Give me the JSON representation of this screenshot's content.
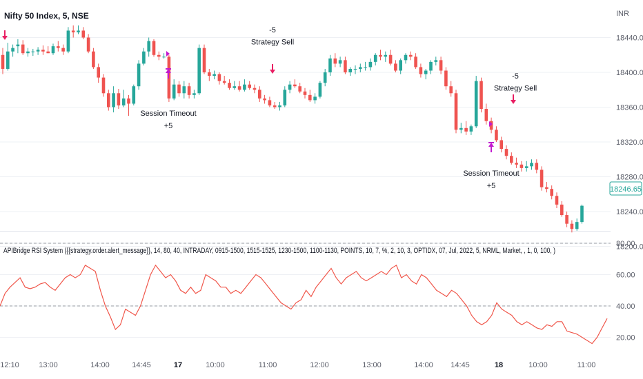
{
  "symbol_title": "Nifty 50 Index, 5, NSE",
  "currency_label": "INR",
  "last_price_label": "18246.65",
  "colors": {
    "up": "#26a69a",
    "down": "#ef5350",
    "rsi_line": "#f0564a",
    "strategy_sell": "#e91e63",
    "session_timeout": "#c21acf"
  },
  "annotations": [
    {
      "text": "-5",
      "x": 395,
      "price": 18446
    },
    {
      "text": "Strategy Sell",
      "x": 395,
      "price": 18432
    },
    {
      "text": "Session Timeout",
      "x": 244,
      "price": 18350
    },
    {
      "text": "+5",
      "x": 244,
      "price": 18336
    },
    {
      "text": "-5",
      "x": 747,
      "price": 18393
    },
    {
      "text": "Strategy Sell",
      "x": 747,
      "price": 18379
    },
    {
      "text": "Session Timeout",
      "x": 712,
      "price": 18281
    },
    {
      "text": "+5",
      "x": 712,
      "price": 18267
    }
  ],
  "rsi_indicator_label": "APIBridge RSI System ({{strategy.order.alert_message}}, 14, 80, 40, INTRADAY, 0915-1500, 1515-1525, 1230-1500, 1100-1130, POINTS, 10, 7, %, 2, 10, 3, OPTIDX, 07, Jul, 2022, 5, NRML, Market, , 1, 0, 100, )",
  "chart_data": [
    {
      "type": "candlestick",
      "title": "Nifty 50 Index, 5, NSE",
      "y_axis_ticks": [
        18200,
        18240,
        18280,
        18320,
        18360,
        18400,
        18440
      ],
      "y_axis_tick_labels": [
        "18200.00",
        "18240.00",
        "18280.00",
        "18320.00",
        "18360.00",
        "18400.00",
        "18440.00"
      ],
      "ylim": [
        18195,
        18470
      ],
      "x_axis_tick_labels": [
        "12:10",
        "13:00",
        "14:00",
        "14:45",
        "17",
        "10:00",
        "11:00",
        "12:00",
        "13:00",
        "14:00",
        "14:45",
        "18",
        "10:00",
        "11:00"
      ],
      "x_axis_bold_labels": [
        "17",
        "18"
      ],
      "last_price": 18246.65,
      "candles": [
        {
          "o": 18420.0,
          "h": 18428.0,
          "l": 18398.0,
          "c": 18404.0
        },
        {
          "o": 18404.0,
          "h": 18434.0,
          "l": 18402.0,
          "c": 18424.0
        },
        {
          "o": 18424.0,
          "h": 18432.0,
          "l": 18418.0,
          "c": 18428.0
        },
        {
          "o": 18430.0,
          "h": 18438.0,
          "l": 18422.0,
          "c": 18432.0
        },
        {
          "o": 18432.0,
          "h": 18437.0,
          "l": 18420.0,
          "c": 18422.0
        },
        {
          "o": 18422.0,
          "h": 18428.0,
          "l": 18418.0,
          "c": 18424.0
        },
        {
          "o": 18424.0,
          "h": 18427.0,
          "l": 18419.0,
          "c": 18424.0
        },
        {
          "o": 18424.0,
          "h": 18429.0,
          "l": 18420.0,
          "c": 18426.0
        },
        {
          "o": 18426.0,
          "h": 18431.0,
          "l": 18420.0,
          "c": 18424.0
        },
        {
          "o": 18424.0,
          "h": 18430.0,
          "l": 18422.0,
          "c": 18422.0
        },
        {
          "o": 18422.0,
          "h": 18433.0,
          "l": 18420.0,
          "c": 18430.0
        },
        {
          "o": 18430.0,
          "h": 18436.0,
          "l": 18424.0,
          "c": 18428.0
        },
        {
          "o": 18428.0,
          "h": 18432.0,
          "l": 18420.0,
          "c": 18424.0
        },
        {
          "o": 18424.0,
          "h": 18452.0,
          "l": 18422.0,
          "c": 18448.0
        },
        {
          "o": 18448.0,
          "h": 18454.0,
          "l": 18440.0,
          "c": 18446.0
        },
        {
          "o": 18446.0,
          "h": 18454.0,
          "l": 18444.0,
          "c": 18448.0
        },
        {
          "o": 18448.0,
          "h": 18452.0,
          "l": 18438.0,
          "c": 18440.0
        },
        {
          "o": 18440.0,
          "h": 18444.0,
          "l": 18422.0,
          "c": 18424.0
        },
        {
          "o": 18424.0,
          "h": 18428.0,
          "l": 18404.0,
          "c": 18406.0
        },
        {
          "o": 18406.0,
          "h": 18410.0,
          "l": 18388.0,
          "c": 18394.0
        },
        {
          "o": 18394.0,
          "h": 18398.0,
          "l": 18372.0,
          "c": 18376.0
        },
        {
          "o": 18376.0,
          "h": 18380.0,
          "l": 18356.0,
          "c": 18360.0
        },
        {
          "o": 18360.0,
          "h": 18384.0,
          "l": 18354.0,
          "c": 18376.0
        },
        {
          "o": 18376.0,
          "h": 18381.0,
          "l": 18358.0,
          "c": 18362.0
        },
        {
          "o": 18362.0,
          "h": 18380.0,
          "l": 18360.0,
          "c": 18370.0
        },
        {
          "o": 18370.0,
          "h": 18374.0,
          "l": 18350.0,
          "c": 18364.0
        },
        {
          "o": 18364.0,
          "h": 18386.0,
          "l": 18362.0,
          "c": 18384.0
        },
        {
          "o": 18384.0,
          "h": 18414.0,
          "l": 18380.0,
          "c": 18410.0
        },
        {
          "o": 18410.0,
          "h": 18428.0,
          "l": 18408.0,
          "c": 18424.0
        },
        {
          "o": 18424.0,
          "h": 18440.0,
          "l": 18418.0,
          "c": 18436.0
        },
        {
          "o": 18436.0,
          "h": 18438.0,
          "l": 18418.0,
          "c": 18420.0
        },
        {
          "o": 18420.0,
          "h": 18424.0,
          "l": 18414.0,
          "c": 18418.0
        },
        {
          "o": 18418.0,
          "h": 18422.0,
          "l": 18416.0,
          "c": 18418.0
        },
        {
          "o": 18418.0,
          "h": 18420.0,
          "l": 18366.0,
          "c": 18370.0
        },
        {
          "o": 18370.0,
          "h": 18392.0,
          "l": 18368.0,
          "c": 18386.0
        },
        {
          "o": 18386.0,
          "h": 18390.0,
          "l": 18372.0,
          "c": 18376.0
        },
        {
          "o": 18376.0,
          "h": 18390.0,
          "l": 18370.0,
          "c": 18384.0
        },
        {
          "o": 18384.0,
          "h": 18388.0,
          "l": 18370.0,
          "c": 18374.0
        },
        {
          "o": 18374.0,
          "h": 18380.0,
          "l": 18370.0,
          "c": 18376.0
        },
        {
          "o": 18376.0,
          "h": 18432.0,
          "l": 18374.0,
          "c": 18428.0
        },
        {
          "o": 18428.0,
          "h": 18432.0,
          "l": 18398.0,
          "c": 18400.0
        },
        {
          "o": 18400.0,
          "h": 18404.0,
          "l": 18390.0,
          "c": 18396.0
        },
        {
          "o": 18396.0,
          "h": 18402.0,
          "l": 18392.0,
          "c": 18398.0
        },
        {
          "o": 18398.0,
          "h": 18400.0,
          "l": 18386.0,
          "c": 18390.0
        },
        {
          "o": 18390.0,
          "h": 18396.0,
          "l": 18386.0,
          "c": 18388.0
        },
        {
          "o": 18388.0,
          "h": 18392.0,
          "l": 18380.0,
          "c": 18382.0
        },
        {
          "o": 18382.0,
          "h": 18390.0,
          "l": 18380.0,
          "c": 18384.0
        },
        {
          "o": 18384.0,
          "h": 18390.0,
          "l": 18378.0,
          "c": 18380.0
        },
        {
          "o": 18380.0,
          "h": 18392.0,
          "l": 18378.0,
          "c": 18386.0
        },
        {
          "o": 18386.0,
          "h": 18390.0,
          "l": 18380.0,
          "c": 18382.0
        },
        {
          "o": 18382.0,
          "h": 18386.0,
          "l": 18376.0,
          "c": 18380.0
        },
        {
          "o": 18380.0,
          "h": 18384.0,
          "l": 18366.0,
          "c": 18370.0
        },
        {
          "o": 18370.0,
          "h": 18374.0,
          "l": 18364.0,
          "c": 18368.0
        },
        {
          "o": 18368.0,
          "h": 18372.0,
          "l": 18360.0,
          "c": 18362.0
        },
        {
          "o": 18362.0,
          "h": 18366.0,
          "l": 18358.0,
          "c": 18360.0
        },
        {
          "o": 18360.0,
          "h": 18366.0,
          "l": 18356.0,
          "c": 18362.0
        },
        {
          "o": 18362.0,
          "h": 18384.0,
          "l": 18360.0,
          "c": 18380.0
        },
        {
          "o": 18380.0,
          "h": 18390.0,
          "l": 18376.0,
          "c": 18386.0
        },
        {
          "o": 18386.0,
          "h": 18392.0,
          "l": 18382.0,
          "c": 18384.0
        },
        {
          "o": 18384.0,
          "h": 18388.0,
          "l": 18376.0,
          "c": 18378.0
        },
        {
          "o": 18378.0,
          "h": 18382.0,
          "l": 18370.0,
          "c": 18374.0
        },
        {
          "o": 18374.0,
          "h": 18380.0,
          "l": 18366.0,
          "c": 18368.0
        },
        {
          "o": 18368.0,
          "h": 18376.0,
          "l": 18364.0,
          "c": 18372.0
        },
        {
          "o": 18372.0,
          "h": 18390.0,
          "l": 18370.0,
          "c": 18388.0
        },
        {
          "o": 18388.0,
          "h": 18404.0,
          "l": 18384.0,
          "c": 18400.0
        },
        {
          "o": 18400.0,
          "h": 18420.0,
          "l": 18396.0,
          "c": 18416.0
        },
        {
          "o": 18416.0,
          "h": 18422.0,
          "l": 18406.0,
          "c": 18410.0
        },
        {
          "o": 18410.0,
          "h": 18418.0,
          "l": 18406.0,
          "c": 18414.0
        },
        {
          "o": 18414.0,
          "h": 18418.0,
          "l": 18398.0,
          "c": 18400.0
        },
        {
          "o": 18400.0,
          "h": 18406.0,
          "l": 18396.0,
          "c": 18404.0
        },
        {
          "o": 18404.0,
          "h": 18408.0,
          "l": 18398.0,
          "c": 18404.0
        },
        {
          "o": 18404.0,
          "h": 18410.0,
          "l": 18400.0,
          "c": 18406.0
        },
        {
          "o": 18406.0,
          "h": 18412.0,
          "l": 18402.0,
          "c": 18406.0
        },
        {
          "o": 18406.0,
          "h": 18416.0,
          "l": 18402.0,
          "c": 18412.0
        },
        {
          "o": 18412.0,
          "h": 18422.0,
          "l": 18408.0,
          "c": 18420.0
        },
        {
          "o": 18420.0,
          "h": 18426.0,
          "l": 18414.0,
          "c": 18418.0
        },
        {
          "o": 18418.0,
          "h": 18424.0,
          "l": 18412.0,
          "c": 18420.0
        },
        {
          "o": 18420.0,
          "h": 18426.0,
          "l": 18408.0,
          "c": 18410.0
        },
        {
          "o": 18410.0,
          "h": 18414.0,
          "l": 18400.0,
          "c": 18402.0
        },
        {
          "o": 18402.0,
          "h": 18416.0,
          "l": 18398.0,
          "c": 18414.0
        },
        {
          "o": 18414.0,
          "h": 18422.0,
          "l": 18410.0,
          "c": 18420.0
        },
        {
          "o": 18420.0,
          "h": 18424.0,
          "l": 18414.0,
          "c": 18418.0
        },
        {
          "o": 18418.0,
          "h": 18422.0,
          "l": 18404.0,
          "c": 18406.0
        },
        {
          "o": 18406.0,
          "h": 18410.0,
          "l": 18394.0,
          "c": 18398.0
        },
        {
          "o": 18398.0,
          "h": 18404.0,
          "l": 18392.0,
          "c": 18402.0
        },
        {
          "o": 18402.0,
          "h": 18414.0,
          "l": 18398.0,
          "c": 18412.0
        },
        {
          "o": 18412.0,
          "h": 18418.0,
          "l": 18408.0,
          "c": 18414.0
        },
        {
          "o": 18414.0,
          "h": 18418.0,
          "l": 18398.0,
          "c": 18402.0
        },
        {
          "o": 18402.0,
          "h": 18406.0,
          "l": 18380.0,
          "c": 18384.0
        },
        {
          "o": 18384.0,
          "h": 18390.0,
          "l": 18372.0,
          "c": 18376.0
        },
        {
          "o": 18376.0,
          "h": 18380.0,
          "l": 18330.0,
          "c": 18334.0
        },
        {
          "o": 18334.0,
          "h": 18342.0,
          "l": 18330.0,
          "c": 18336.0
        },
        {
          "o": 18336.0,
          "h": 18344.0,
          "l": 18328.0,
          "c": 18332.0
        },
        {
          "o": 18332.0,
          "h": 18340.0,
          "l": 18328.0,
          "c": 18338.0
        },
        {
          "o": 18338.0,
          "h": 18396.0,
          "l": 18336.0,
          "c": 18390.0
        },
        {
          "o": 18390.0,
          "h": 18394.0,
          "l": 18354.0,
          "c": 18358.0
        },
        {
          "o": 18358.0,
          "h": 18364.0,
          "l": 18340.0,
          "c": 18344.0
        },
        {
          "o": 18344.0,
          "h": 18348.0,
          "l": 18330.0,
          "c": 18334.0
        },
        {
          "o": 18334.0,
          "h": 18338.0,
          "l": 18320.0,
          "c": 18322.0
        },
        {
          "o": 18322.0,
          "h": 18326.0,
          "l": 18308.0,
          "c": 18312.0
        },
        {
          "o": 18312.0,
          "h": 18316.0,
          "l": 18300.0,
          "c": 18304.0
        },
        {
          "o": 18304.0,
          "h": 18308.0,
          "l": 18294.0,
          "c": 18296.0
        },
        {
          "o": 18296.0,
          "h": 18302.0,
          "l": 18290.0,
          "c": 18294.0
        },
        {
          "o": 18294.0,
          "h": 18298.0,
          "l": 18286.0,
          "c": 18290.0
        },
        {
          "o": 18290.0,
          "h": 18298.0,
          "l": 18286.0,
          "c": 18292.0
        },
        {
          "o": 18292.0,
          "h": 18300.0,
          "l": 18288.0,
          "c": 18296.0
        },
        {
          "o": 18296.0,
          "h": 18300.0,
          "l": 18284.0,
          "c": 18288.0
        },
        {
          "o": 18288.0,
          "h": 18292.0,
          "l": 18264.0,
          "c": 18268.0
        },
        {
          "o": 18268.0,
          "h": 18274.0,
          "l": 18262.0,
          "c": 18266.0
        },
        {
          "o": 18266.0,
          "h": 18270.0,
          "l": 18254.0,
          "c": 18258.0
        },
        {
          "o": 18258.0,
          "h": 18262.0,
          "l": 18244.0,
          "c": 18248.0
        },
        {
          "o": 18248.0,
          "h": 18252.0,
          "l": 18234.0,
          "c": 18236.0
        },
        {
          "o": 18236.0,
          "h": 18240.0,
          "l": 18222.0,
          "c": 18226.0
        },
        {
          "o": 18226.0,
          "h": 18230.0,
          "l": 18216.0,
          "c": 18220.0
        },
        {
          "o": 18220.0,
          "h": 18232.0,
          "l": 18218.0,
          "c": 18228.0
        },
        {
          "o": 18228.0,
          "h": 18248.0,
          "l": 18226.0,
          "c": 18246.65
        }
      ]
    },
    {
      "type": "line",
      "title": "APIBridge RSI System ({{strategy.order.alert_message}}, 14, 80, 40, INTRADAY, 0915-1500, 1515-1525, 1230-1500, 1100-1130, POINTS, 10, 7, %, 2, 10, 3, OPTIDX, 07, Jul, 2022, 5, NRML, Market, , 1, 0, 100, )",
      "y_axis_ticks": [
        20,
        40,
        60,
        80
      ],
      "y_axis_tick_labels": [
        "20.00",
        "40.00",
        "60.00",
        "80.00"
      ],
      "ylim": [
        12,
        86
      ],
      "reference_lines": [
        80,
        40
      ],
      "series": [
        {
          "values": [
            40,
            48,
            52,
            55,
            58,
            52,
            51,
            52,
            54,
            55,
            52,
            50,
            54,
            58,
            60,
            58,
            60,
            66,
            64,
            62,
            50,
            40,
            33,
            25,
            28,
            38,
            36,
            34,
            40,
            50,
            60,
            66,
            62,
            58,
            60,
            56,
            50,
            48,
            52,
            48,
            50,
            60,
            58,
            56,
            52,
            52,
            48,
            50,
            48,
            52,
            56,
            60,
            58,
            54,
            50,
            46,
            42,
            40,
            38,
            42,
            44,
            50,
            46,
            52,
            56,
            60,
            64,
            58,
            54,
            58,
            60,
            62,
            58,
            56,
            58,
            60,
            62,
            60,
            64,
            66,
            58,
            60,
            56,
            54,
            60,
            58,
            54,
            50,
            48,
            46,
            50,
            48,
            44,
            40,
            34,
            30,
            28,
            30,
            34,
            42,
            38,
            36,
            34,
            30,
            28,
            30,
            28,
            26,
            25,
            28,
            27,
            30,
            30,
            24,
            23,
            22,
            20,
            18,
            16,
            20,
            26,
            32
          ]
        }
      ]
    }
  ]
}
